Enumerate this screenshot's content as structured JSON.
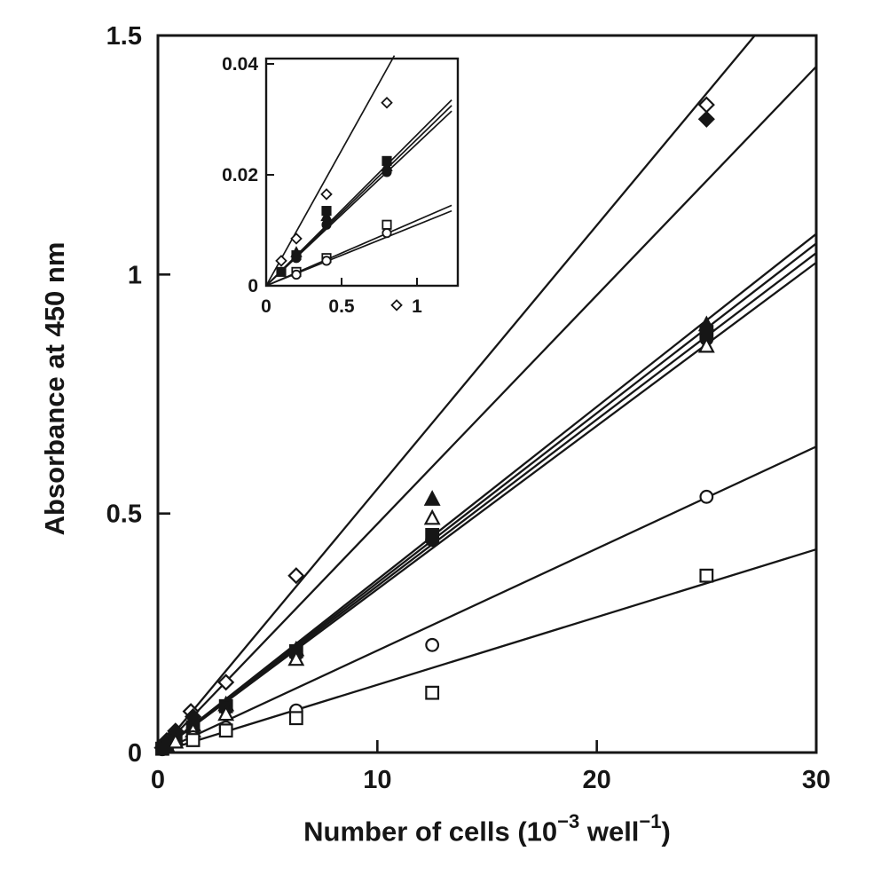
{
  "figure": {
    "ink_color": "#161616",
    "background_color": "#ffffff"
  },
  "labels": {
    "y_label": "Absorbance at 450 nm",
    "x_label_parts": [
      "Number of cells (10",
      "−3",
      " well",
      "−1",
      ")"
    ]
  },
  "chart_data": [
    {
      "id": "main",
      "type": "scatter",
      "title": "",
      "xlabel": "Number of cells (10^-3 well^-1)",
      "ylabel": "Absorbance at 450 nm",
      "xlim": [
        0,
        30
      ],
      "ylim": [
        0,
        1.5
      ],
      "grid": false,
      "legend": "none",
      "x_ticks": [
        0,
        10,
        20,
        30
      ],
      "x_tick_labels": [
        "0",
        "10",
        "20",
        "30"
      ],
      "y_ticks": [
        0,
        0.5,
        1,
        1.5
      ],
      "y_tick_labels": [
        "0",
        "0.5",
        "1",
        "1.5"
      ],
      "series": [
        {
          "name": "open-diamond",
          "marker": "open-diamond",
          "line": [
            [
              0,
              0
            ],
            [
              27.2,
              1.5
            ]
          ],
          "points": [
            [
              0.4,
              0.025
            ],
            [
              0.8,
              0.045
            ],
            [
              1.5,
              0.086
            ],
            [
              3.1,
              0.147
            ],
            [
              6.3,
              0.37
            ],
            [
              25,
              1.355
            ]
          ]
        },
        {
          "name": "filled-diamond",
          "marker": "filled-diamond",
          "line": [
            [
              0,
              0
            ],
            [
              30,
              1.435
            ]
          ],
          "points": [
            [
              0.2,
              0.01
            ],
            [
              0.4,
              0.02
            ],
            [
              0.8,
              0.04
            ],
            [
              1.6,
              0.075
            ],
            [
              25,
              1.325
            ]
          ]
        },
        {
          "name": "filled-triangle",
          "marker": "filled-triangle",
          "line": [
            [
              0,
              0
            ],
            [
              30,
              1.085
            ]
          ],
          "points": [
            [
              0.4,
              0.015
            ],
            [
              0.8,
              0.03
            ],
            [
              1.6,
              0.058
            ],
            [
              3.1,
              0.1
            ],
            [
              6.3,
              0.215
            ],
            [
              12.5,
              0.53
            ],
            [
              25,
              0.895
            ]
          ]
        },
        {
          "name": "filled-square",
          "marker": "filled-square",
          "line": [
            [
              0,
              0
            ],
            [
              30,
              1.065
            ]
          ],
          "points": [
            [
              0.2,
              0.008
            ],
            [
              0.4,
              0.014
            ],
            [
              0.8,
              0.028
            ],
            [
              1.6,
              0.053
            ],
            [
              3.1,
              0.097
            ],
            [
              6.3,
              0.212
            ],
            [
              12.5,
              0.455
            ],
            [
              25,
              0.88
            ]
          ]
        },
        {
          "name": "filled-circle",
          "marker": "filled-circle",
          "line": [
            [
              0,
              0
            ],
            [
              30,
              1.045
            ]
          ],
          "points": [
            [
              0.2,
              0.007
            ],
            [
              0.4,
              0.013
            ],
            [
              0.8,
              0.026
            ],
            [
              1.6,
              0.05
            ],
            [
              3.1,
              0.092
            ],
            [
              6.3,
              0.205
            ],
            [
              12.5,
              0.445
            ],
            [
              25,
              0.865
            ]
          ]
        },
        {
          "name": "open-triangle",
          "marker": "open-triangle",
          "line": [
            [
              0,
              0
            ],
            [
              30,
              1.025
            ]
          ],
          "points": [
            [
              0.8,
              0.022
            ],
            [
              1.6,
              0.045
            ],
            [
              3.1,
              0.08
            ],
            [
              6.3,
              0.195
            ],
            [
              12.5,
              0.49
            ],
            [
              25,
              0.85
            ]
          ]
        },
        {
          "name": "open-circle",
          "marker": "open-circle",
          "line": [
            [
              0,
              0
            ],
            [
              30,
              0.64
            ]
          ],
          "points": [
            [
              1.6,
              0.032
            ],
            [
              3.1,
              0.052
            ],
            [
              6.3,
              0.088
            ],
            [
              12.5,
              0.225
            ],
            [
              25,
              0.535
            ]
          ]
        },
        {
          "name": "open-square",
          "marker": "open-square",
          "line": [
            [
              0,
              0
            ],
            [
              30,
              0.425
            ]
          ],
          "points": [
            [
              1.6,
              0.026
            ],
            [
              3.1,
              0.046
            ],
            [
              6.3,
              0.072
            ],
            [
              12.5,
              0.125
            ],
            [
              25,
              0.37
            ]
          ]
        }
      ]
    },
    {
      "id": "inset",
      "type": "scatter",
      "title": "",
      "xlabel": "",
      "ylabel": "",
      "xlim": [
        0,
        1
      ],
      "ylim": [
        0,
        0.04
      ],
      "grid": false,
      "legend": "none",
      "x_ticks": [
        0,
        0.5,
        1
      ],
      "x_tick_labels": [
        "0",
        "0.5",
        "1"
      ],
      "y_ticks": [
        0,
        0.02,
        0.04
      ],
      "y_tick_labels": [
        "0",
        "0.02",
        "0.04"
      ],
      "stray_marker": {
        "marker": "open-diamond",
        "at": [
          0.865,
          -0.0035
        ]
      },
      "series": [
        {
          "name": "open-diamond",
          "marker": "open-diamond",
          "line": [
            [
              0,
              0
            ],
            [
              0.85,
              0.0415
            ]
          ],
          "points": [
            [
              0.1,
              0.0045
            ],
            [
              0.2,
              0.0085
            ],
            [
              0.4,
              0.0165
            ],
            [
              0.8,
              0.033
            ]
          ]
        },
        {
          "name": "filled-triangle",
          "marker": "filled-triangle",
          "line": [
            [
              0,
              0
            ],
            [
              1.23,
              0.0335
            ]
          ],
          "points": [
            [
              0.2,
              0.006
            ],
            [
              0.4,
              0.0125
            ],
            [
              0.8,
              0.0215
            ]
          ]
        },
        {
          "name": "filled-square",
          "marker": "filled-square",
          "line": [
            [
              0,
              0
            ],
            [
              1.23,
              0.0325
            ]
          ],
          "points": [
            [
              0.1,
              0.0025
            ],
            [
              0.2,
              0.0055
            ],
            [
              0.4,
              0.0135
            ],
            [
              0.8,
              0.0225
            ]
          ]
        },
        {
          "name": "filled-circle",
          "marker": "filled-circle",
          "line": [
            [
              0,
              0
            ],
            [
              1.23,
              0.0315
            ]
          ],
          "points": [
            [
              0.2,
              0.005
            ],
            [
              0.4,
              0.011
            ],
            [
              0.8,
              0.0205
            ]
          ]
        },
        {
          "name": "open-square",
          "marker": "open-square",
          "line": [
            [
              0,
              0
            ],
            [
              1.23,
              0.0145
            ]
          ],
          "points": [
            [
              0.2,
              0.0025
            ],
            [
              0.4,
              0.005
            ],
            [
              0.8,
              0.011
            ]
          ]
        },
        {
          "name": "open-circle",
          "marker": "open-circle",
          "line": [
            [
              0,
              0
            ],
            [
              1.23,
              0.0135
            ]
          ],
          "points": [
            [
              0.2,
              0.002
            ],
            [
              0.4,
              0.0045
            ],
            [
              0.8,
              0.0095
            ]
          ]
        }
      ]
    }
  ]
}
